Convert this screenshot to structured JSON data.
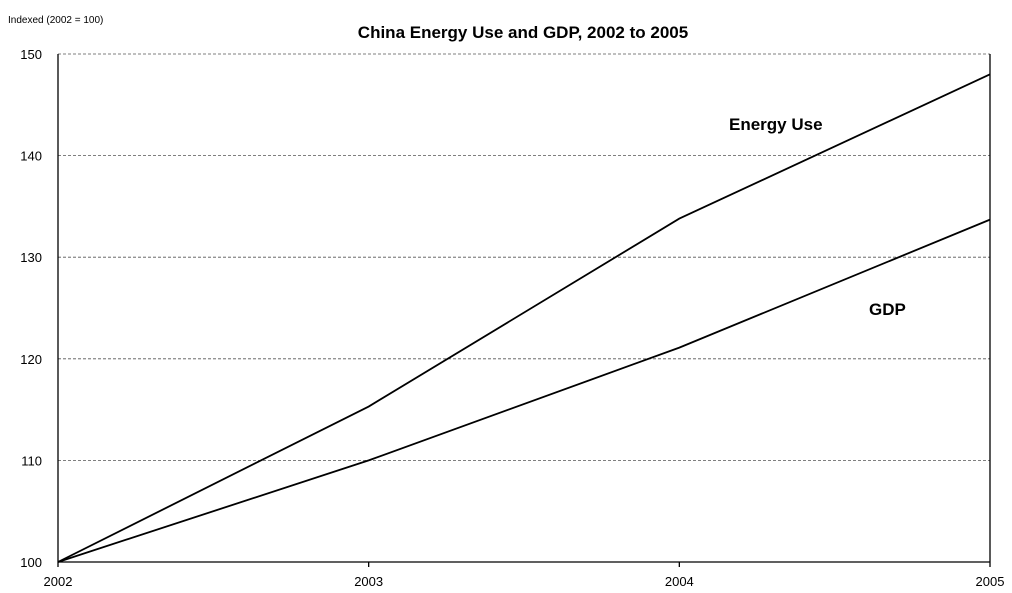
{
  "chart_data": {
    "type": "line",
    "title": "China Energy Use and GDP, 2002 to 2005",
    "units_label": "Indexed (2002 = 100)",
    "xlabel": "",
    "ylabel": "",
    "x": [
      "2002",
      "2003",
      "2004",
      "2005"
    ],
    "ylim": [
      100,
      150
    ],
    "yticks": [
      100,
      110,
      120,
      130,
      140,
      150
    ],
    "grid": true,
    "legend": "none",
    "series": [
      {
        "name": "Energy Use",
        "values": [
          100,
          115.3,
          133.8,
          148
        ]
      },
      {
        "name": "GDP",
        "values": [
          100,
          110,
          121.1,
          133.7
        ]
      }
    ]
  }
}
